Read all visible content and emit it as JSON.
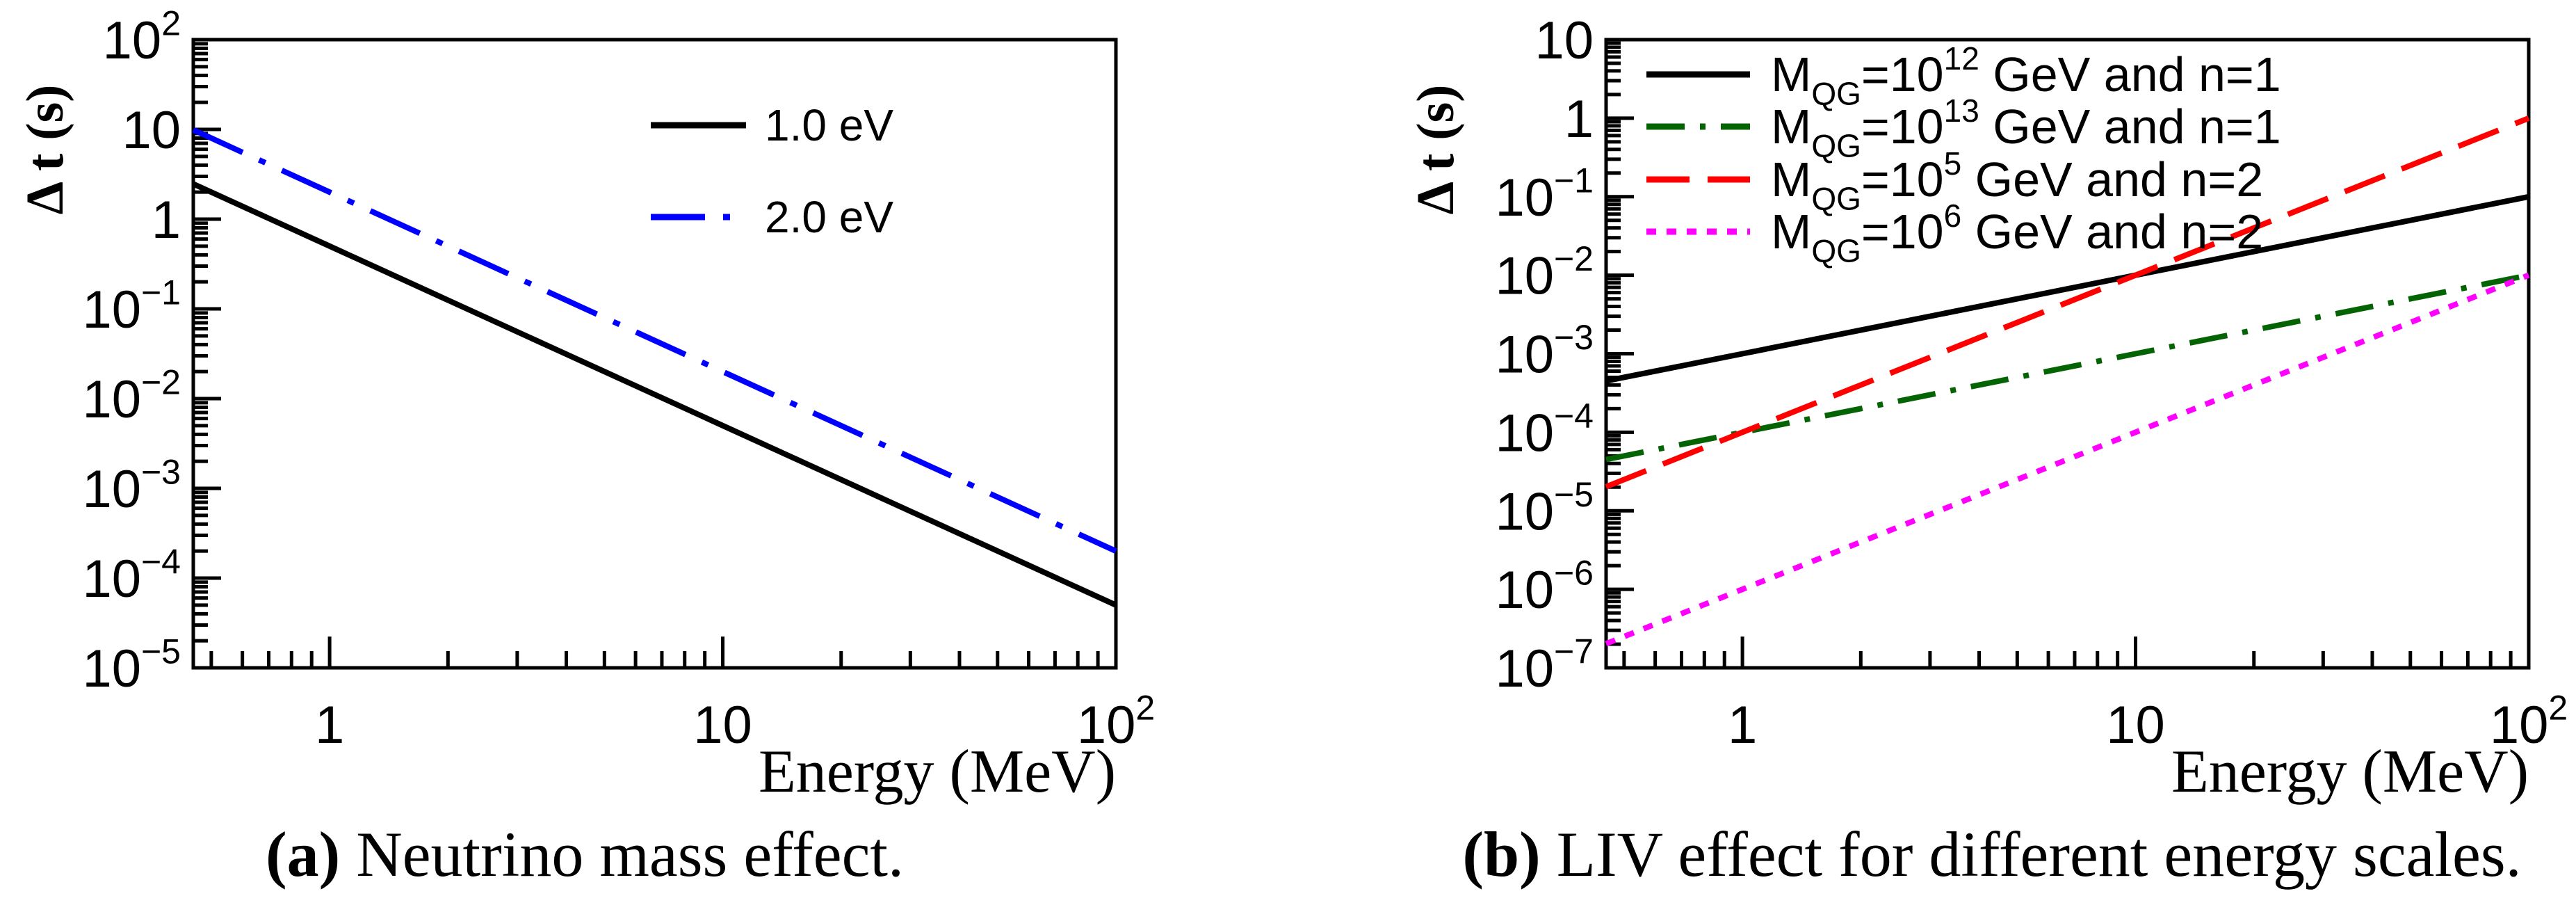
{
  "figure": {
    "background": "#ffffff",
    "captions": {
      "a_label": "(a)",
      "a_text": " Neutrino mass effect.",
      "b_label": "(b)",
      "b_text": " LIV effect for different energy scales."
    }
  },
  "chart_data": [
    {
      "id": "a",
      "type": "line",
      "title": "Neutrino mass effect",
      "xlabel": "Energy (MeV)",
      "ylabel": "Δ t (s)",
      "x_scale": "log",
      "y_scale": "log",
      "xlim": [
        0.45,
        100
      ],
      "ylim": [
        1e-05,
        100
      ],
      "grid": false,
      "legend_position": "upper-right-inside",
      "x_ticks": [
        {
          "v": 1,
          "t": "1"
        },
        {
          "v": 10,
          "t": "10"
        },
        {
          "v": 100,
          "t": "10",
          "e": "2"
        }
      ],
      "y_ticks": [
        {
          "v": 100,
          "t": "10",
          "e": "2"
        },
        {
          "v": 10,
          "t": "10"
        },
        {
          "v": 1,
          "t": "1"
        },
        {
          "v": 0.1,
          "t": "10",
          "e": "−1"
        },
        {
          "v": 0.01,
          "t": "10",
          "e": "−2"
        },
        {
          "v": 0.001,
          "t": "10",
          "e": "−3"
        },
        {
          "v": 0.0001,
          "t": "10",
          "e": "−4"
        },
        {
          "v": 1e-05,
          "t": "10",
          "e": "−5"
        }
      ],
      "series": [
        {
          "name": "1.0 eV",
          "label_parts": [
            {
              "t": "1.0 eV"
            }
          ],
          "color": "#000000",
          "style": "solid",
          "power_law": "dt = 0.5 / E^2  (slope -2 in log-log)",
          "points": [
            [
              0.45,
              2.469
            ],
            [
              1,
              0.5
            ],
            [
              10,
              0.005
            ],
            [
              100,
              5e-05
            ]
          ]
        },
        {
          "name": "2.0 eV",
          "label_parts": [
            {
              "t": "2.0 eV"
            }
          ],
          "color": "#0000ff",
          "style": "dash-dot-long",
          "power_law": "dt = 2 / E^2  (slope -2 in log-log)",
          "points": [
            [
              0.45,
              9.877
            ],
            [
              1,
              2
            ],
            [
              10,
              0.02
            ],
            [
              100,
              0.0002
            ]
          ]
        }
      ]
    },
    {
      "id": "b",
      "type": "line",
      "title": "LIV effect for different energy scales",
      "xlabel": "Energy (MeV)",
      "ylabel": "Δ t (s)",
      "x_scale": "log",
      "y_scale": "log",
      "xlim": [
        0.45,
        100
      ],
      "ylim": [
        1e-07,
        10
      ],
      "grid": false,
      "legend_position": "upper-left-inside",
      "x_ticks": [
        {
          "v": 1,
          "t": "1"
        },
        {
          "v": 10,
          "t": "10"
        },
        {
          "v": 100,
          "t": "10",
          "e": "2"
        }
      ],
      "y_ticks": [
        {
          "v": 10,
          "t": "10"
        },
        {
          "v": 1,
          "t": "1"
        },
        {
          "v": 0.1,
          "t": "10",
          "e": "−1"
        },
        {
          "v": 0.01,
          "t": "10",
          "e": "−2"
        },
        {
          "v": 0.001,
          "t": "10",
          "e": "−3"
        },
        {
          "v": 0.0001,
          "t": "10",
          "e": "−4"
        },
        {
          "v": 1e-05,
          "t": "10",
          "e": "−5"
        },
        {
          "v": 1e-06,
          "t": "10",
          "e": "−6"
        },
        {
          "v": 1e-07,
          "t": "10",
          "e": "−7"
        }
      ],
      "series": [
        {
          "name": "M_QG=10^12 GeV and n=1",
          "label_parts": [
            {
              "t": "M"
            },
            {
              "t": "QG",
              "s": "sub"
            },
            {
              "t": "=10"
            },
            {
              "t": "12",
              "s": "sup"
            },
            {
              "t": " GeV and n=1"
            }
          ],
          "color": "#000000",
          "style": "solid",
          "power_law": "dt = 1e-3 * E  (slope +1 in log-log)",
          "points": [
            [
              0.45,
              0.00045
            ],
            [
              1,
              0.001
            ],
            [
              10,
              0.01
            ],
            [
              100,
              0.1
            ]
          ]
        },
        {
          "name": "M_QG=10^13 GeV and n=1",
          "label_parts": [
            {
              "t": "M"
            },
            {
              "t": "QG",
              "s": "sub"
            },
            {
              "t": "=10"
            },
            {
              "t": "13",
              "s": "sup"
            },
            {
              "t": " GeV and n=1"
            }
          ],
          "color": "#046404",
          "style": "dash-dot",
          "power_law": "dt = 1e-4 * E  (slope +1 in log-log)",
          "points": [
            [
              0.45,
              4.5e-05
            ],
            [
              1,
              0.0001
            ],
            [
              10,
              0.001
            ],
            [
              100,
              0.01
            ]
          ]
        },
        {
          "name": "M_QG=10^5 GeV and n=2",
          "label_parts": [
            {
              "t": "M"
            },
            {
              "t": "QG",
              "s": "sub"
            },
            {
              "t": "=10"
            },
            {
              "t": "5",
              "s": "sup"
            },
            {
              "t": " GeV and n=2"
            }
          ],
          "color": "#ff0000",
          "style": "dashed",
          "power_law": "dt = 1e-4 * E^2  (slope +2 in log-log)",
          "points": [
            [
              0.45,
              2.025e-05
            ],
            [
              1,
              0.0001
            ],
            [
              10,
              0.01
            ],
            [
              100,
              1
            ]
          ]
        },
        {
          "name": "M_QG=10^6 GeV and n=2",
          "label_parts": [
            {
              "t": "M"
            },
            {
              "t": "QG",
              "s": "sub"
            },
            {
              "t": "=10"
            },
            {
              "t": "6",
              "s": "sup"
            },
            {
              "t": " GeV and n=2"
            }
          ],
          "color": "#ff00ff",
          "style": "dotted",
          "power_law": "dt = 1e-6 * E^2  (slope +2 in log-log)",
          "points": [
            [
              0.45,
              2.025e-07
            ],
            [
              1,
              1e-06
            ],
            [
              10,
              0.0001
            ],
            [
              100,
              0.01
            ]
          ]
        }
      ]
    }
  ]
}
